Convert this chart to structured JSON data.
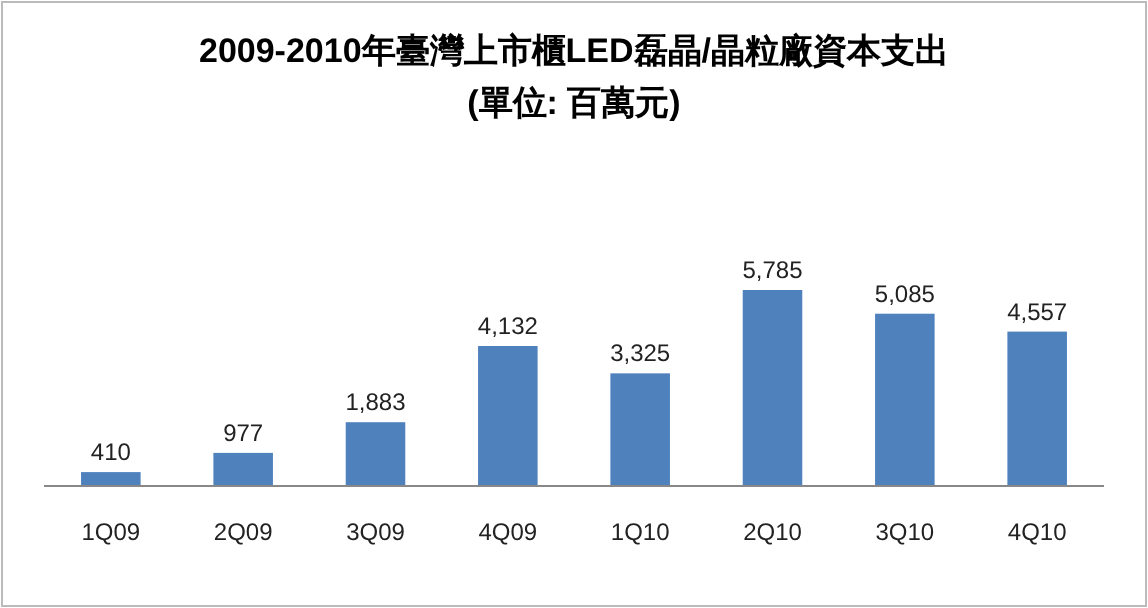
{
  "chart_data": {
    "type": "bar",
    "title": "2009-2010年臺灣上市櫃LED磊晶/晶粒廠資本支出",
    "subtitle": "(單位: 百萬元)",
    "categories": [
      "1Q09",
      "2Q09",
      "3Q09",
      "4Q09",
      "1Q10",
      "2Q10",
      "3Q10",
      "4Q10"
    ],
    "values": [
      410,
      977,
      1883,
      4132,
      3325,
      5785,
      5085,
      4557
    ],
    "value_labels": [
      "410",
      "977",
      "1,883",
      "4,132",
      "3,325",
      "5,785",
      "5,085",
      "4,557"
    ],
    "color": "#4f81bd"
  }
}
